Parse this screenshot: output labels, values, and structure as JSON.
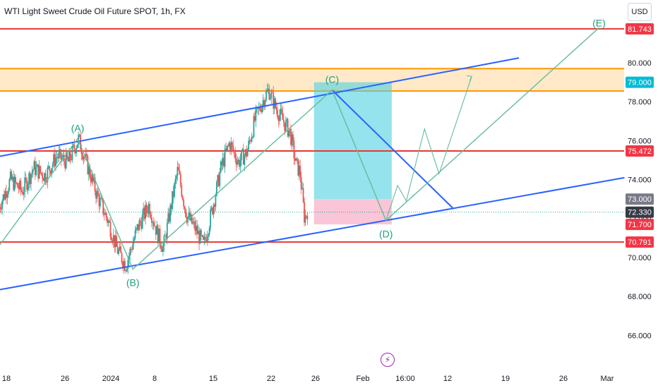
{
  "header": {
    "title": "WTI Light Sweet Crude Oil Future SPOT, 1h, FX",
    "currency_button": "USD",
    "event_icon": "lightning-icon"
  },
  "colors": {
    "up_candle": "#26a69a",
    "down_candle": "#ef5350",
    "red_level": "#e53935",
    "orange_level": "#ff9800",
    "orange_zone": "#ffe0b2",
    "channel": "#2962ff",
    "wave": "#66bb9a",
    "wave_label": "#1e9f7e",
    "target_zone": "#4dd0e1",
    "stop_zone": "#f8bbd0",
    "price_tag_red": "#f23645",
    "price_tag_teal": "#00bcd4",
    "price_tag_gray": "#787b86",
    "price_tag_dark": "#363a45"
  },
  "chart_data": {
    "type": "candlestick",
    "title": "WTI Light Sweet Crude Oil Future SPOT, 1h, FX",
    "ylim": [
      65.0,
      82.3
    ],
    "y_ticks": [
      "66.000",
      "68.000",
      "70.000",
      "72.000",
      "74.000",
      "76.000",
      "78.000",
      "80.000"
    ],
    "x_ticks": [
      "18",
      "26",
      "2024",
      "8",
      "15",
      "22",
      "26",
      "Feb",
      "16:00",
      "12",
      "19",
      "26",
      "Mar"
    ],
    "price_tags": [
      {
        "label": "81.743",
        "value": 81.743,
        "style": "red"
      },
      {
        "label": "79.000",
        "value": 79.0,
        "style": "teal"
      },
      {
        "label": "75.472",
        "value": 75.472,
        "style": "red"
      },
      {
        "label": "73.000",
        "value": 73.0,
        "style": "gray"
      },
      {
        "label": "72.330",
        "value": 72.33,
        "style": "dark"
      },
      {
        "label": "71.700",
        "value": 71.7,
        "style": "red"
      },
      {
        "label": "70.791",
        "value": 70.791,
        "style": "red"
      }
    ],
    "horizontal_levels": [
      {
        "value": 81.743,
        "color": "red"
      },
      {
        "value": 75.472,
        "color": "red"
      },
      {
        "value": 70.791,
        "color": "red"
      }
    ],
    "supply_zone": {
      "low": 78.55,
      "high": 79.7
    },
    "last_price": 72.33,
    "wave_labels": [
      {
        "label": "(A)",
        "date": "Dec 27",
        "price": 76.1
      },
      {
        "label": "(B)",
        "date": "Jan 4",
        "price": 69.4
      },
      {
        "label": "(C)",
        "date": "Jan 28",
        "price": 78.6
      },
      {
        "label": "(D)",
        "date": "Feb 2",
        "price": 71.9
      },
      {
        "label": "(E)",
        "date": "Feb 28",
        "price": 81.5
      }
    ],
    "position": {
      "entry": 73.0,
      "target": 79.0,
      "stop": 71.7
    }
  }
}
